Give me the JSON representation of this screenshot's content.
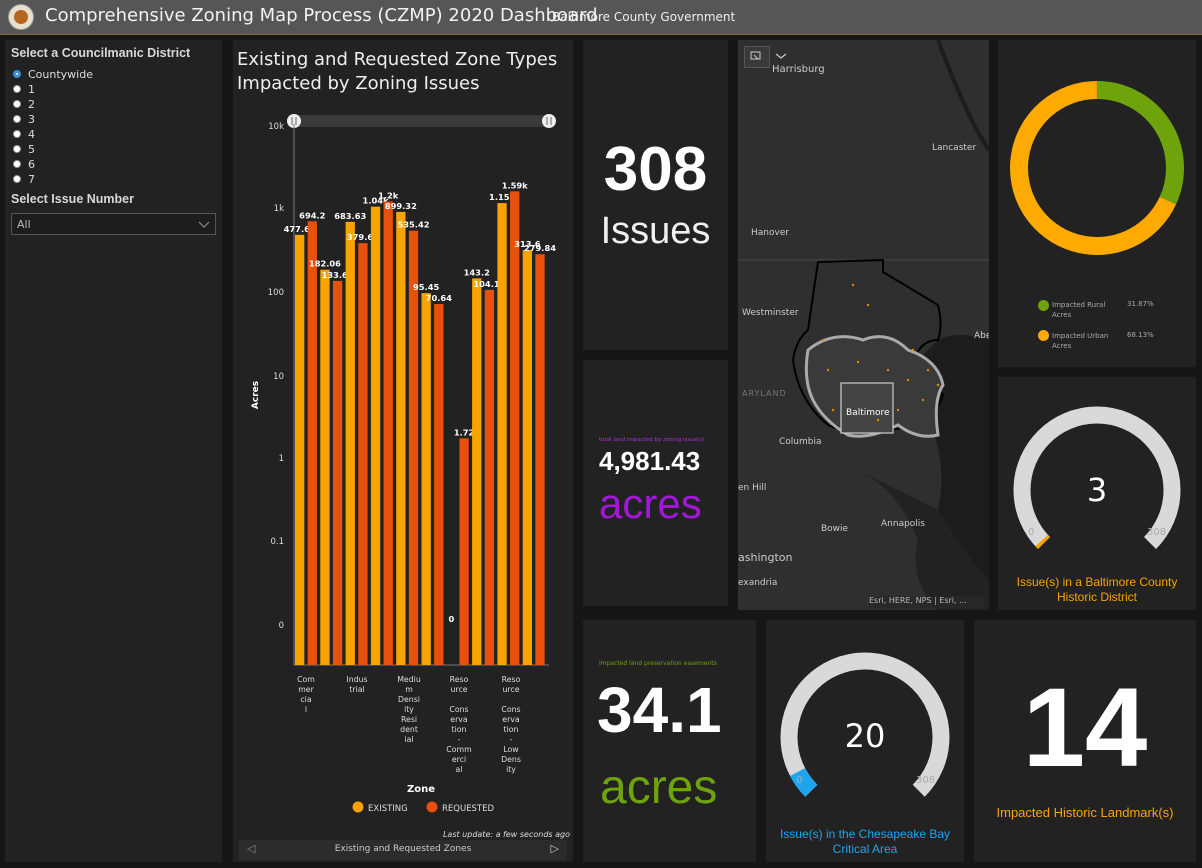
{
  "header": {
    "title": "Comprehensive Zoning Map Process (CZMP) 2020 Dashboard",
    "subtitle": "Baltimore County Government"
  },
  "selectors": {
    "district_label": "Select a Councilmanic District",
    "district_options": [
      "Countywide",
      "1",
      "2",
      "3",
      "4",
      "5",
      "6",
      "7"
    ],
    "district_selected": "Countywide",
    "issue_label": "Select Issue Number",
    "issue_value": "All"
  },
  "chart": {
    "title": "Existing and Requested Zone Types Impacted by Zoning Issues",
    "xlabel": "Zone",
    "ylabel": "Acres",
    "legend": [
      "EXISTING",
      "REQUESTED"
    ],
    "last_update": "Last update: a few seconds ago",
    "footer_label": "Existing and Requested Zones",
    "y_ticks": [
      "10k",
      "1k",
      "100",
      "10",
      "1",
      "0.1",
      "0"
    ],
    "category_labels": [
      [
        "Com",
        "mer",
        "cia",
        "l"
      ],
      [
        "Indus",
        "trial"
      ],
      [
        "Mediu",
        "m",
        "Densi",
        "ity",
        "Resi",
        "dent",
        "ial"
      ],
      [
        "Reso",
        "urce",
        "",
        "Cons",
        "erva",
        "tion",
        "-",
        "Comm",
        "erci",
        "al"
      ],
      [
        "Reso",
        "urce",
        "",
        "Cons",
        "erva",
        "tion",
        "-",
        "Low",
        "Dens",
        "ity"
      ]
    ]
  },
  "chart_data": {
    "type": "bar",
    "title": "Existing and Requested Zone Types Impacted by Zoning Issues",
    "xlabel": "Zone",
    "ylabel": "Acres",
    "y_scale": "log",
    "ylim": [
      0,
      10000
    ],
    "bars": [
      {
        "label": "477.69",
        "value": 477.69,
        "series": "EXISTING"
      },
      {
        "label": "694.2",
        "value": 694.2,
        "series": "REQUESTED"
      },
      {
        "label": "182.06",
        "value": 182.06,
        "series": "EXISTING"
      },
      {
        "label": "133.67",
        "value": 133.67,
        "series": "REQUESTED"
      },
      {
        "label": "683.63",
        "value": 683.63,
        "series": "EXISTING"
      },
      {
        "label": "379.63",
        "value": 379.63,
        "series": "REQUESTED"
      },
      {
        "label": "1.04k",
        "value": 1040,
        "series": "EXISTING"
      },
      {
        "label": "1.2k",
        "value": 1200,
        "series": "REQUESTED"
      },
      {
        "label": "899.32",
        "value": 899.32,
        "series": "EXISTING"
      },
      {
        "label": "535.42",
        "value": 535.42,
        "series": "REQUESTED"
      },
      {
        "label": "95.45",
        "value": 95.45,
        "series": "EXISTING"
      },
      {
        "label": "70.64",
        "value": 70.64,
        "series": "REQUESTED"
      },
      {
        "label": "0",
        "value": 0,
        "series": "EXISTING"
      },
      {
        "label": "1.72",
        "value": 1.72,
        "series": "REQUESTED"
      },
      {
        "label": "143.2",
        "value": 143.2,
        "series": "EXISTING"
      },
      {
        "label": "104.19",
        "value": 104.19,
        "series": "REQUESTED"
      },
      {
        "label": "1.15k",
        "value": 1150,
        "series": "EXISTING"
      },
      {
        "label": "1.59k",
        "value": 1590,
        "series": "REQUESTED"
      },
      {
        "label": "313.6",
        "value": 313.6,
        "series": "EXISTING"
      },
      {
        "label": "279.84",
        "value": 279.84,
        "series": "REQUESTED"
      }
    ],
    "colors": {
      "EXISTING": "#f7a400",
      "REQUESTED": "#e8500c"
    }
  },
  "issues": {
    "value": "308",
    "label": "Issues"
  },
  "total_land": {
    "caption": "total land impacted by zoning issue(s)",
    "value": "4,981.43",
    "unit": "acres"
  },
  "map": {
    "places": [
      "Harrisburg",
      "Lancaster",
      "Hanover",
      "Westminster",
      "ARYLAND",
      "Baltimore",
      "Columbia",
      "Abe",
      "en Hill",
      "Bowie",
      "Annapolis",
      "ashington",
      "exandria"
    ],
    "attribution": "Esri, HERE, NPS | Esri, ..."
  },
  "donut": {
    "rural_label": "Impacted Rural Acres",
    "rural_pct": "31.87%",
    "rural_value": 31.87,
    "urban_label": "Impacted Urban Acres",
    "urban_pct": "68.13%",
    "urban_value": 68.13,
    "colors": {
      "rural": "#6ea30c",
      "urban": "#ffaa00"
    }
  },
  "historic_district": {
    "value": "3",
    "value_num": 3,
    "min": "0",
    "max": "308",
    "max_num": 308,
    "label": "Issue(s) in a Baltimore County Historic District"
  },
  "preservation": {
    "caption": "Impacted land preservation easements",
    "value": "34.1",
    "unit": "acres"
  },
  "bay": {
    "value": "20",
    "value_num": 20,
    "min": "0",
    "max": "308",
    "max_num": 308,
    "label": "Issue(s) in the Chesapeake Bay Critical Area"
  },
  "landmarks": {
    "value": "14",
    "label": "Impacted Historic Landmark(s)"
  }
}
